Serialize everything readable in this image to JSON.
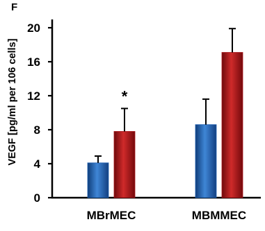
{
  "chart_data": {
    "type": "bar",
    "panel_label": "F",
    "ylabel": "VEGF [pg/ml per 106 cells]",
    "xlabel": "",
    "ylim": [
      0,
      20
    ],
    "yticks": [
      "0",
      "4",
      "8",
      "12",
      "16",
      "20"
    ],
    "categories": [
      "MBrMEC",
      "MBMMEC"
    ],
    "series": [
      {
        "color": "#1f5fb0",
        "values": [
          4.1,
          8.6
        ],
        "errors": [
          0.8,
          3.0
        ]
      },
      {
        "color": "#a8161a",
        "values": [
          7.8,
          17.1
        ],
        "errors": [
          2.7,
          2.8
        ]
      }
    ],
    "annotations": [
      {
        "text": "*",
        "category": "MBrMEC",
        "series": 1
      }
    ],
    "grid": false,
    "legend": "none"
  }
}
